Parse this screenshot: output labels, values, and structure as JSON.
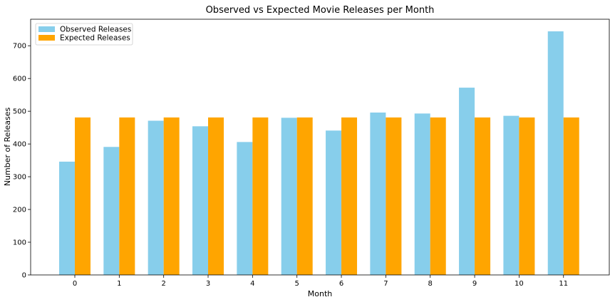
{
  "chart_data": {
    "type": "bar",
    "title": "Observed vs Expected Movie Releases per Month",
    "xlabel": "Month",
    "ylabel": "Number of Releases",
    "categories": [
      "0",
      "1",
      "2",
      "3",
      "4",
      "5",
      "6",
      "7",
      "8",
      "9",
      "10",
      "11"
    ],
    "series": [
      {
        "name": "Observed Releases",
        "color": "#87ceeb",
        "values": [
          346,
          391,
          471,
          454,
          406,
          480,
          441,
          496,
          493,
          572,
          486,
          744
        ]
      },
      {
        "name": "Expected Releases",
        "color": "#ffa500",
        "values": [
          481,
          481,
          481,
          481,
          481,
          481,
          481,
          481,
          481,
          481,
          481,
          481
        ]
      }
    ],
    "ylim": [
      0,
      781
    ],
    "yticks": [
      0,
      100,
      200,
      300,
      400,
      500,
      600,
      700
    ],
    "grid": false,
    "legend_position": "top-left"
  }
}
